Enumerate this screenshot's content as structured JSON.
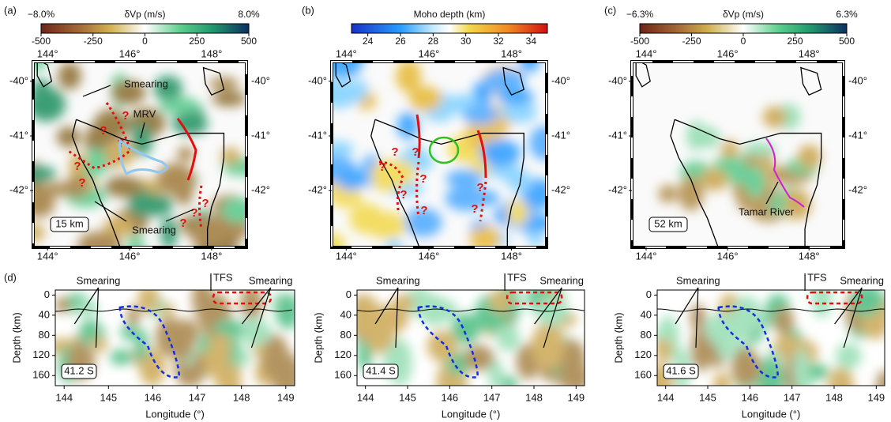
{
  "panels": [
    {
      "label": "(a)",
      "colorbar": {
        "title": "δVp (m/s)",
        "min_label": "−8.0%",
        "max_label": "8.0%",
        "range": [
          -500,
          500
        ],
        "ticks": [
          -500,
          -250,
          0,
          250,
          500
        ]
      },
      "map": {
        "xlim": [
          143.65,
          148.85
        ],
        "ylim": [
          -43.04,
          -39.64
        ],
        "xticks": [
          {
            "value": 144,
            "label": "144°"
          },
          {
            "value": 146,
            "label": "146°"
          },
          {
            "value": 148,
            "label": "148°"
          }
        ],
        "yticks": [
          {
            "value": -40,
            "label": "-40°"
          },
          {
            "value": -41,
            "label": "-41°"
          },
          {
            "value": -42,
            "label": "-42°"
          }
        ],
        "depth_label": "15 km",
        "annotations": [
          "Smearing",
          "MRV",
          "Smearing"
        ],
        "question_marks": [
          "?",
          "?",
          "?",
          "?",
          "?",
          "?",
          "?",
          "?"
        ]
      }
    },
    {
      "label": "(b)",
      "colorbar": {
        "title": "Moho depth (km)",
        "range": [
          23,
          35
        ],
        "ticks": [
          24,
          26,
          28,
          30,
          32,
          34
        ]
      },
      "map": {
        "xlim": [
          143.65,
          148.85
        ],
        "ylim": [
          -43.04,
          -39.64
        ],
        "xticks": [
          {
            "value": 144,
            "label": "144°"
          },
          {
            "value": 146,
            "label": "146°"
          },
          {
            "value": 148,
            "label": "148°"
          }
        ],
        "yticks": [
          {
            "value": -40,
            "label": "-40°"
          },
          {
            "value": -41,
            "label": "-41°"
          },
          {
            "value": -42,
            "label": "-42°"
          }
        ],
        "question_marks": [
          "?",
          "?",
          "?",
          "?",
          "?",
          "?",
          "?",
          "?"
        ]
      }
    },
    {
      "label": "(c)",
      "colorbar": {
        "title": "δVp (m/s)",
        "min_label": "−6.3%",
        "max_label": "6.3%",
        "range": [
          -500,
          500
        ],
        "ticks": [
          -500,
          -250,
          0,
          250,
          500
        ]
      },
      "map": {
        "xlim": [
          143.65,
          148.85
        ],
        "ylim": [
          -43.04,
          -39.64
        ],
        "xticks": [
          {
            "value": 144,
            "label": "144°"
          },
          {
            "value": 146,
            "label": "146°"
          },
          {
            "value": 148,
            "label": "148°"
          }
        ],
        "yticks": [
          {
            "value": -40,
            "label": "-40°"
          },
          {
            "value": -41,
            "label": "-41°"
          },
          {
            "value": -42,
            "label": "-42°"
          }
        ],
        "depth_label": "52 km",
        "annotations": [
          "Tamar River"
        ]
      }
    }
  ],
  "cross_sections": {
    "label": "(d)",
    "xlim": [
      143.8,
      149.2
    ],
    "ylim": [
      -10,
      180
    ],
    "y_inverted": true,
    "xticks": [
      144,
      145,
      146,
      147,
      148,
      149
    ],
    "yticks": [
      0,
      40,
      80,
      120,
      160
    ],
    "xlabel": "Longitude (°)",
    "ylabel": "Depth (km)",
    "plots": [
      {
        "annotations": [
          "Smearing",
          "TFS",
          "Smearing"
        ],
        "section_label": "41.2 S"
      },
      {
        "annotations": [
          "Smearing",
          "TFS",
          "Smearing"
        ],
        "section_label": "41.4 S"
      },
      {
        "annotations": [
          "Smearing",
          "TFS",
          "Smearing"
        ],
        "section_label": "41.6 S"
      }
    ]
  }
}
